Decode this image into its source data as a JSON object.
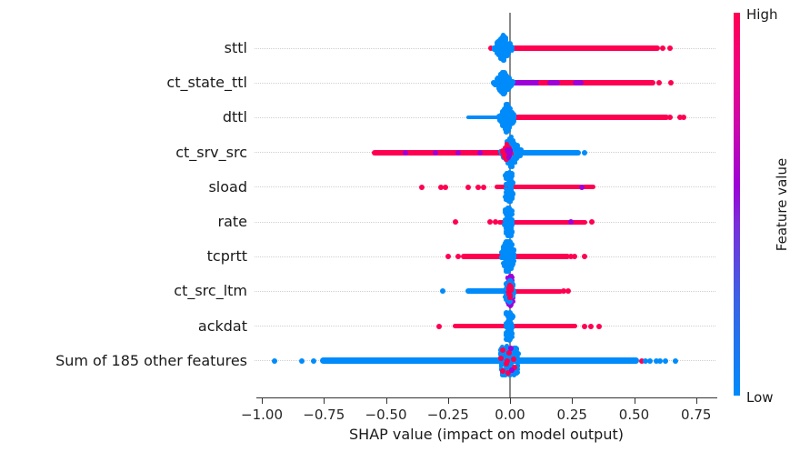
{
  "colors": {
    "high": "#ff0051",
    "low": "#008bfb",
    "mid": "#9d02d7",
    "grid": "#cfcfcf",
    "zero_line": "#8a8a8a",
    "axis": "#333333",
    "text": "#1a1a1a"
  },
  "colorbar": {
    "high_label": "High",
    "low_label": "Low",
    "title": "Feature value",
    "gradient_bottom_to_top": [
      "#008bfb",
      "#3b62e4",
      "#7a2fd9",
      "#9d02d7",
      "#cb08ad",
      "#ef0283",
      "#ff0051"
    ]
  },
  "chart_data": {
    "type": "scatter",
    "subtype": "shap-beeswarm-summary",
    "xlabel": "SHAP value (impact on model output)",
    "xlim": [
      -1.03,
      0.83
    ],
    "xticks": [
      -1.0,
      -0.75,
      -0.5,
      -0.25,
      0.0,
      0.25,
      0.5,
      0.75
    ],
    "xtick_labels": [
      "−1.00",
      "−0.75",
      "−0.50",
      "−0.25",
      "0.00",
      "0.25",
      "0.50",
      "0.75"
    ],
    "grid": "dotted-horizontal-per-row",
    "legend_position": "colorbar-right",
    "rows": [
      {
        "feature": "sttl",
        "segments": [
          {
            "x1": -0.005,
            "x2": 0.06,
            "c": "low",
            "h": 4
          },
          {
            "x1": 0.02,
            "x2": 0.595,
            "c": "high",
            "h": 6
          }
        ],
        "dots": [
          {
            "x": -0.077,
            "c": "high"
          },
          {
            "x": 0.615,
            "c": "high"
          },
          {
            "x": 0.645,
            "c": "high"
          }
        ],
        "blobs": [
          {
            "t": "spindle",
            "cx": -0.028,
            "hw": 0.04,
            "hh": 15,
            "c": "low",
            "n": 130
          }
        ]
      },
      {
        "feature": "ct_state_ttl",
        "segments": [
          {
            "x1": 0.005,
            "x2": 0.13,
            "c": "mid",
            "h": 6
          },
          {
            "x1": 0.125,
            "x2": 0.575,
            "c": "high",
            "h": 6
          },
          {
            "x1": 0.16,
            "x2": 0.19,
            "c": "mid",
            "h": 6
          },
          {
            "x1": 0.265,
            "x2": 0.285,
            "c": "mid",
            "h": 6
          }
        ],
        "dots": [
          {
            "x": 0.6,
            "c": "high"
          },
          {
            "x": 0.648,
            "c": "high"
          }
        ],
        "blobs": [
          {
            "t": "spindle",
            "cx": -0.026,
            "hw": 0.042,
            "hh": 13,
            "c": "low",
            "n": 120
          }
        ]
      },
      {
        "feature": "dttl",
        "segments": [
          {
            "x1": -0.165,
            "x2": -0.03,
            "c": "low",
            "h": 4
          },
          {
            "x1": 0.025,
            "x2": 0.63,
            "c": "high",
            "h": 6
          }
        ],
        "dots": [
          {
            "x": 0.645,
            "c": "high"
          },
          {
            "x": 0.685,
            "c": "high"
          },
          {
            "x": 0.7,
            "c": "high"
          }
        ],
        "blobs": [
          {
            "t": "spindle",
            "cx": -0.012,
            "hw": 0.036,
            "hh": 16,
            "c": "low",
            "n": 140
          }
        ]
      },
      {
        "feature": "ct_srv_src",
        "segments": [
          {
            "x1": -0.545,
            "x2": -0.02,
            "c": "high",
            "h": 6
          },
          {
            "x1": 0.03,
            "x2": 0.275,
            "c": "low",
            "h": 6
          }
        ],
        "dots": [
          {
            "x": 0.3,
            "c": "low"
          },
          {
            "x": -0.42,
            "c": "mid"
          },
          {
            "x": -0.3,
            "c": "mid"
          },
          {
            "x": -0.21,
            "c": "mid"
          },
          {
            "x": -0.12,
            "c": "mid"
          }
        ],
        "blobs": [
          {
            "t": "spindle",
            "cx": 0.005,
            "hw": 0.047,
            "hh": 18,
            "c": "low",
            "n": 130
          },
          {
            "t": "spindle",
            "cx": -0.012,
            "hw": 0.02,
            "hh": 10,
            "c": "high",
            "n": 45
          },
          {
            "t": "spindle",
            "cx": -0.006,
            "hw": 0.012,
            "hh": 6,
            "c": "mid",
            "n": 12
          }
        ]
      },
      {
        "feature": "sload",
        "segments": [
          {
            "x1": -0.05,
            "x2": 0.335,
            "c": "high",
            "h": 5
          }
        ],
        "dots": [
          {
            "x": -0.355,
            "c": "high"
          },
          {
            "x": -0.28,
            "c": "high"
          },
          {
            "x": -0.26,
            "c": "high"
          },
          {
            "x": -0.17,
            "c": "high"
          },
          {
            "x": -0.13,
            "c": "high"
          },
          {
            "x": -0.105,
            "c": "high"
          },
          {
            "x": 0.29,
            "c": "mid"
          }
        ],
        "blobs": [
          {
            "t": "capsule",
            "cx": -0.002,
            "hw": 0.016,
            "hh": 16,
            "c": "low",
            "n": 80
          }
        ]
      },
      {
        "feature": "rate",
        "segments": [
          {
            "x1": -0.04,
            "x2": 0.3,
            "c": "high",
            "h": 5
          }
        ],
        "dots": [
          {
            "x": -0.22,
            "c": "high"
          },
          {
            "x": -0.08,
            "c": "high"
          },
          {
            "x": -0.06,
            "c": "high"
          },
          {
            "x": 0.245,
            "c": "mid"
          },
          {
            "x": 0.33,
            "c": "high"
          }
        ],
        "blobs": [
          {
            "t": "capsule",
            "cx": -0.005,
            "hw": 0.016,
            "hh": 16,
            "c": "low",
            "n": 80
          }
        ]
      },
      {
        "feature": "tcprtt",
        "segments": [
          {
            "x1": -0.185,
            "x2": 0.23,
            "c": "high",
            "h": 6
          }
        ],
        "dots": [
          {
            "x": -0.25,
            "c": "high"
          },
          {
            "x": -0.21,
            "c": "high"
          },
          {
            "x": 0.245,
            "c": "high"
          },
          {
            "x": 0.26,
            "c": "high"
          },
          {
            "x": 0.3,
            "c": "high"
          }
        ],
        "blobs": [
          {
            "t": "ellipse",
            "cx": -0.008,
            "hw": 0.026,
            "hh": 17,
            "c": "low",
            "n": 130
          }
        ]
      },
      {
        "feature": "ct_src_ltm",
        "segments": [
          {
            "x1": -0.17,
            "x2": -0.01,
            "c": "low",
            "h": 6
          },
          {
            "x1": 0.01,
            "x2": 0.2,
            "c": "high",
            "h": 5
          }
        ],
        "dots": [
          {
            "x": -0.27,
            "c": "low"
          },
          {
            "x": 0.215,
            "c": "high"
          },
          {
            "x": 0.235,
            "c": "high"
          }
        ],
        "blobs": [
          {
            "t": "capsule",
            "cx": 0.0,
            "hw": 0.013,
            "hh": 17,
            "c": "mid",
            "n": 50
          },
          {
            "t": "ellipse",
            "cx": -0.002,
            "hw": 0.02,
            "hh": 12,
            "c": "low",
            "n": 60
          },
          {
            "t": "ellipse",
            "cx": 0.0,
            "hw": 0.008,
            "hh": 7,
            "c": "high",
            "n": 14
          }
        ]
      },
      {
        "feature": "ackdat",
        "segments": [
          {
            "x1": -0.22,
            "x2": 0.26,
            "c": "high",
            "h": 5
          }
        ],
        "dots": [
          {
            "x": -0.285,
            "c": "high"
          },
          {
            "x": 0.3,
            "c": "high"
          },
          {
            "x": 0.325,
            "c": "high"
          },
          {
            "x": 0.36,
            "c": "high"
          }
        ],
        "blobs": [
          {
            "t": "capsule",
            "cx": -0.003,
            "hw": 0.014,
            "hh": 16,
            "c": "low",
            "n": 75
          }
        ]
      },
      {
        "feature": "Sum of 185 other features",
        "segments": [
          {
            "x1": -0.755,
            "x2": 0.51,
            "c": "low",
            "h": 7
          }
        ],
        "dots": [
          {
            "x": -0.95,
            "c": "low"
          },
          {
            "x": -0.84,
            "c": "low"
          },
          {
            "x": -0.79,
            "c": "low"
          },
          {
            "x": 0.53,
            "c": "high"
          },
          {
            "x": 0.545,
            "c": "low"
          },
          {
            "x": 0.565,
            "c": "low"
          },
          {
            "x": 0.59,
            "c": "low"
          },
          {
            "x": 0.605,
            "c": "low"
          },
          {
            "x": 0.625,
            "c": "low"
          },
          {
            "x": 0.665,
            "c": "low"
          }
        ],
        "blobs": [
          {
            "t": "square",
            "cx": -0.004,
            "hw": 0.035,
            "hh": 16,
            "c": "low",
            "n": 120
          }
        ],
        "sprinkles": [
          {
            "dx": -0.025,
            "dy": -12,
            "c": "high"
          },
          {
            "dx": 0.002,
            "dy": -9,
            "c": "high"
          },
          {
            "dx": -0.032,
            "dy": -3,
            "c": "high"
          },
          {
            "dx": 0.018,
            "dy": -2,
            "c": "high"
          },
          {
            "dx": -0.012,
            "dy": 3,
            "c": "high"
          },
          {
            "dx": 0.022,
            "dy": 7,
            "c": "high"
          },
          {
            "dx": -0.027,
            "dy": 11,
            "c": "high"
          },
          {
            "dx": -0.002,
            "dy": 13,
            "c": "high"
          },
          {
            "dx": 0.008,
            "dy": -14,
            "c": "mid"
          },
          {
            "dx": -0.006,
            "dy": 0,
            "c": "high"
          },
          {
            "dx": 0.012,
            "dy": 10,
            "c": "mid"
          }
        ]
      }
    ]
  }
}
